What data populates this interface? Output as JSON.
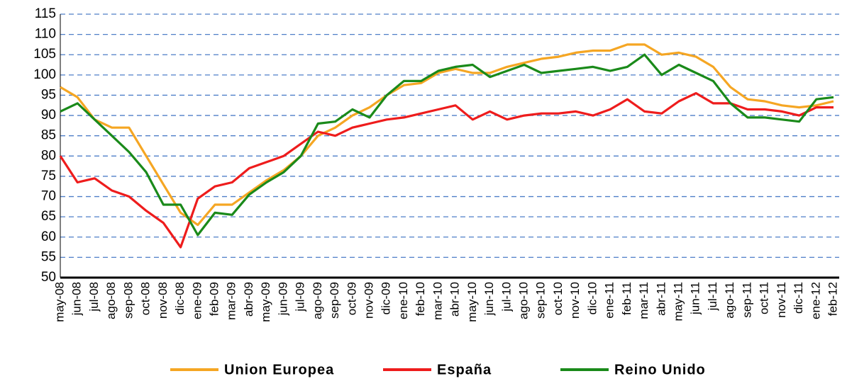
{
  "chart_data": {
    "type": "line",
    "categories": [
      "may-08",
      "jun-08",
      "jul-08",
      "ago-08",
      "sep-08",
      "oct-08",
      "nov-08",
      "dic-08",
      "ene-09",
      "feb-09",
      "mar-09",
      "abr-09",
      "may-09",
      "jun-09",
      "jul-09",
      "ago-09",
      "sep-09",
      "oct-09",
      "nov-09",
      "dic-09",
      "ene-10",
      "feb-10",
      "mar-10",
      "abr-10",
      "may-10",
      "jun-10",
      "jul-10",
      "ago-10",
      "sep-10",
      "oct-10",
      "nov-10",
      "dic-10",
      "ene-11",
      "feb-11",
      "mar-11",
      "abr-11",
      "may-11",
      "jun-11",
      "jul-11",
      "ago-11",
      "sep-11",
      "oct-11",
      "nov-11",
      "dic-11",
      "ene-12",
      "feb-12"
    ],
    "series": [
      {
        "name": "Union Europea",
        "color": "#f5a623",
        "values": [
          97,
          94.5,
          89,
          87,
          87,
          80,
          73,
          66,
          63,
          68,
          68,
          71,
          74,
          76.5,
          80,
          85,
          87,
          90,
          92,
          95,
          97.5,
          98,
          100.5,
          101.5,
          100.5,
          100.5,
          102,
          103,
          104,
          104.5,
          105.5,
          106,
          106,
          107.5,
          107.5,
          105,
          105.5,
          104.5,
          102,
          97,
          94,
          93.5,
          92.5,
          92,
          92.5,
          93.5
        ]
      },
      {
        "name": "España",
        "color": "#ee1c1c",
        "values": [
          80,
          73.5,
          74.5,
          71.5,
          70,
          66.5,
          63.5,
          57.5,
          69.5,
          72.5,
          73.5,
          77,
          78.5,
          80,
          83,
          86,
          85,
          87,
          88,
          89,
          89.5,
          90.5,
          91.5,
          92.5,
          89,
          91,
          89,
          90,
          90.5,
          90.5,
          91,
          90,
          91.5,
          94,
          91,
          90.5,
          93.5,
          95.5,
          93,
          93,
          91.5,
          91.5,
          91,
          90,
          92,
          92
        ]
      },
      {
        "name": "Reino Unido",
        "color": "#1a8a1a",
        "values": [
          91,
          93,
          89,
          85,
          81,
          76,
          68,
          68,
          60.5,
          66,
          65.5,
          70.5,
          73.5,
          76,
          80,
          88,
          88.5,
          91.5,
          89.5,
          95,
          98.5,
          98.5,
          101,
          102,
          102.5,
          99.5,
          101,
          102.5,
          100.5,
          101,
          101.5,
          102,
          101,
          102,
          105,
          100,
          102.5,
          100.5,
          98.5,
          93,
          89.5,
          89.5,
          89,
          88.5,
          94,
          94.5
        ]
      }
    ],
    "ylim": [
      50,
      115
    ],
    "yticks": [
      50,
      55,
      60,
      65,
      70,
      75,
      80,
      85,
      90,
      95,
      100,
      105,
      110,
      115
    ],
    "grid": true
  }
}
